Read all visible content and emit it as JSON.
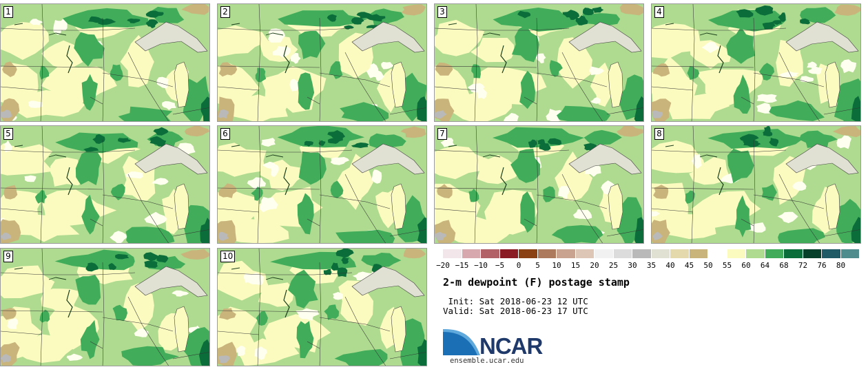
{
  "panels": [
    {
      "label": "1"
    },
    {
      "label": "2"
    },
    {
      "label": "3"
    },
    {
      "label": "4"
    },
    {
      "label": "5"
    },
    {
      "label": "6"
    },
    {
      "label": "7"
    },
    {
      "label": "8"
    },
    {
      "label": "9"
    },
    {
      "label": "10"
    }
  ],
  "colorbar": {
    "colors": [
      "#f3e6ea",
      "#d7a8ae",
      "#b26266",
      "#8a1a24",
      "#8a4214",
      "#ad7a5e",
      "#c9a290",
      "#ddc6b6",
      "#f1f1f1",
      "#dcdcdc",
      "#b9b9b9",
      "#e1e1d3",
      "#e3d9ad",
      "#c9b47c",
      "#ffffff",
      "#fbfbc0",
      "#aedb8f",
      "#41ad5a",
      "#0b6d3a",
      "#06402a",
      "#1f5a66",
      "#4f8c8e"
    ],
    "ticks": [
      "−20",
      "−15",
      "−10",
      "−5",
      "0",
      "5",
      "10",
      "15",
      "20",
      "25",
      "30",
      "35",
      "40",
      "45",
      "50",
      "55",
      "60",
      "64",
      "68",
      "72",
      "76",
      "80"
    ]
  },
  "map_colors": {
    "base": "#aedb8f",
    "light": "#fbfbc0",
    "pale": "#fffff0",
    "green": "#41ad5a",
    "dark": "#0b6d3a",
    "tan": "#c9b47c",
    "lake": "#e1e1d3",
    "gray": "#b9b9b9"
  },
  "title": "2-m dewpoint (F) postage stamp",
  "init": " Init: Sat 2018-06-23 12 UTC",
  "valid": "Valid: Sat 2018-06-23 17 UTC",
  "logo": {
    "name": "NCAR",
    "url": "ensemble.ucar.edu",
    "color": "#1f3a6a"
  }
}
